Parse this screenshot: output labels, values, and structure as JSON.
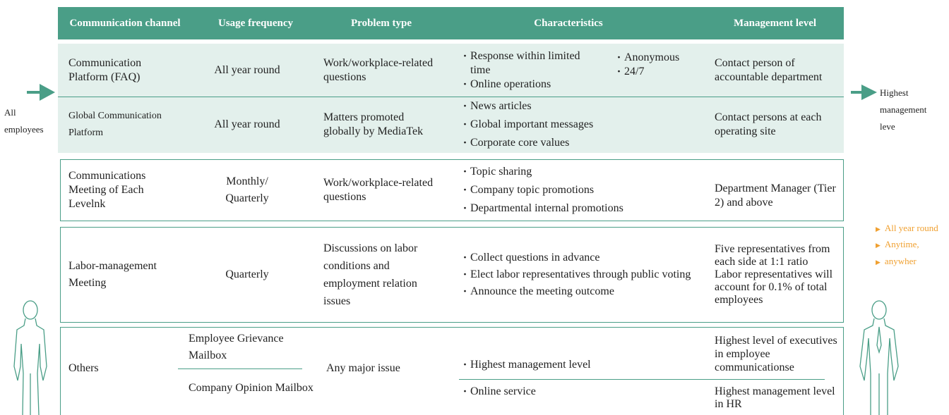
{
  "header": [
    "Communication channel",
    "Usage frequency",
    "Problem type",
    "Characteristics",
    "Management level"
  ],
  "left_label": "All employees",
  "right_label": "Highest management leve",
  "legend": [
    "All year round",
    "Anytime,",
    "anywher"
  ],
  "rows": [
    {
      "channel": "Communication Platform (FAQ)",
      "frequency": "All year round",
      "problem": "Work/workplace-related questions",
      "characteristics": [
        "Response within limited time",
        "Online operations"
      ],
      "extra": [
        "Anonymous",
        "24/7"
      ],
      "management": "Contact person of accountable department"
    },
    {
      "channel": "Global Communication Platform",
      "frequency": "All year round",
      "problem": "Matters promoted globally by MediaTek",
      "characteristics": [
        "News articles",
        "Global important messages",
        "Corporate core values"
      ],
      "management": "Contact persons at each operating site"
    },
    {
      "channel": "Communications Meeting of Each Levelnk",
      "frequency": "Monthly/ Quarterly",
      "problem": "Work/workplace-related questions",
      "characteristics": [
        "Topic sharing",
        "Company topic promotions",
        "Departmental internal promotions"
      ],
      "management": "Department Manager (Tier 2) and above"
    },
    {
      "channel": "Labor-management Meeting",
      "frequency": "Quarterly",
      "problem": "Discussions on labor conditions and employment relation issues",
      "characteristics": [
        "Collect questions in advance",
        "Elect labor representatives through public voting",
        "Announce the meeting outcome"
      ],
      "management": [
        "Five representatives from each side at 1:1 ratio",
        "Labor representatives will account for 0.1% of total employees"
      ]
    },
    {
      "channel": "Others",
      "problem": "Any major issue",
      "subrows": [
        {
          "mailbox": "Employee Grievance Mailbox",
          "characteristic": "Highest management level",
          "management": "Highest level of executives in employee communicationse"
        },
        {
          "mailbox": "Company Opinion Mailbox",
          "characteristic": "Online service",
          "management": "Highest management level in HR"
        }
      ]
    }
  ]
}
